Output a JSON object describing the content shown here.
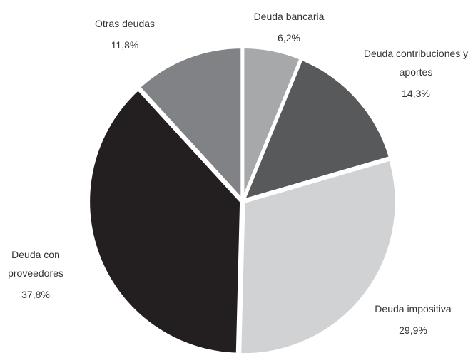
{
  "chart_data": {
    "type": "pie",
    "categories": [
      "Deuda bancaria",
      "Deuda contribuciones y aportes",
      "Deuda impositiva",
      "Deuda con proveedores",
      "Otras deudas"
    ],
    "values": [
      6.2,
      14.3,
      29.9,
      37.8,
      11.8
    ],
    "value_labels": [
      "6,2%",
      "14,3%",
      "29,9%",
      "37,8%",
      "11,8%"
    ],
    "colors": [
      "#a7a8aa",
      "#58595b",
      "#d1d2d3",
      "#231f20",
      "#808285"
    ]
  }
}
